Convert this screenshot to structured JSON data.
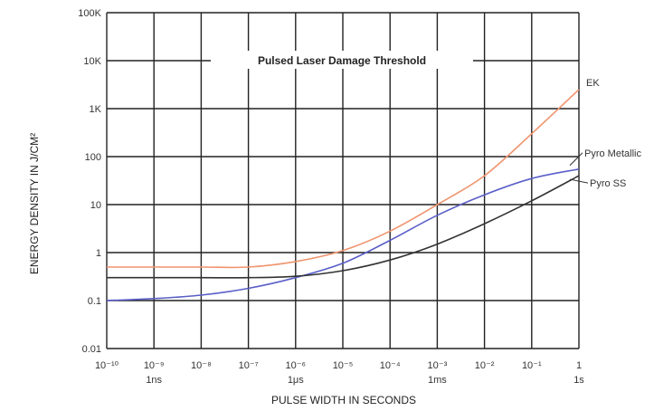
{
  "chart_data": {
    "type": "line",
    "title": "Pulsed Laser Damage Threshold",
    "xlabel": "PULSE WIDTH IN SECONDS",
    "ylabel": "ENERGY DENSITY IN J/CM²",
    "x_scale": "log",
    "y_scale": "log",
    "xlim": [
      1e-10,
      1
    ],
    "ylim": [
      0.01,
      100000
    ],
    "grid": true,
    "x_ticks": [
      {
        "value": 1e-10,
        "label": "10⁻¹⁰"
      },
      {
        "value": 1e-09,
        "label": "10⁻⁹"
      },
      {
        "value": 1e-08,
        "label": "10⁻⁸"
      },
      {
        "value": 1e-07,
        "label": "10⁻⁷"
      },
      {
        "value": 1e-06,
        "label": "10⁻⁶"
      },
      {
        "value": 1e-05,
        "label": "10⁻⁵"
      },
      {
        "value": 0.0001,
        "label": "10⁻⁴"
      },
      {
        "value": 0.001,
        "label": "10⁻³"
      },
      {
        "value": 0.01,
        "label": "10⁻²"
      },
      {
        "value": 0.1,
        "label": "10⁻¹"
      },
      {
        "value": 1,
        "label": "1"
      }
    ],
    "x_sublabels": [
      {
        "value": 1e-09,
        "label": "1ns"
      },
      {
        "value": 1e-06,
        "label": "1μs"
      },
      {
        "value": 0.001,
        "label": "1ms"
      },
      {
        "value": 1,
        "label": "1s"
      }
    ],
    "y_ticks": [
      {
        "value": 0.01,
        "label": "0.01"
      },
      {
        "value": 0.1,
        "label": "0.1"
      },
      {
        "value": 1,
        "label": "1"
      },
      {
        "value": 10,
        "label": "10"
      },
      {
        "value": 100,
        "label": "100"
      },
      {
        "value": 1000,
        "label": "1K"
      },
      {
        "value": 10000,
        "label": "10K"
      },
      {
        "value": 100000,
        "label": "100K"
      }
    ],
    "series": [
      {
        "name": "EK",
        "color": "#f0946e",
        "x": [
          1e-10,
          1e-09,
          1e-08,
          1e-07,
          1e-06,
          1e-05,
          0.0001,
          0.001,
          0.01,
          0.1,
          1
        ],
        "y": [
          0.5,
          0.5,
          0.5,
          0.5,
          0.65,
          1.1,
          2.8,
          10,
          40,
          300,
          2500
        ]
      },
      {
        "name": "Pyro Metallic",
        "color": "#5a5fc8",
        "x": [
          1e-10,
          1e-09,
          1e-08,
          1e-07,
          1e-06,
          1e-05,
          0.0001,
          0.001,
          0.01,
          0.1,
          1
        ],
        "y": [
          0.1,
          0.11,
          0.13,
          0.18,
          0.3,
          0.6,
          1.8,
          6,
          16,
          35,
          55
        ]
      },
      {
        "name": "Pyro SS",
        "color": "#333333",
        "x": [
          1e-10,
          1e-09,
          1e-08,
          1e-07,
          1e-06,
          1e-05,
          0.0001,
          0.001,
          0.01,
          0.1,
          1
        ],
        "y": [
          0.3,
          0.3,
          0.3,
          0.3,
          0.32,
          0.42,
          0.7,
          1.5,
          4,
          12,
          40
        ]
      }
    ]
  }
}
